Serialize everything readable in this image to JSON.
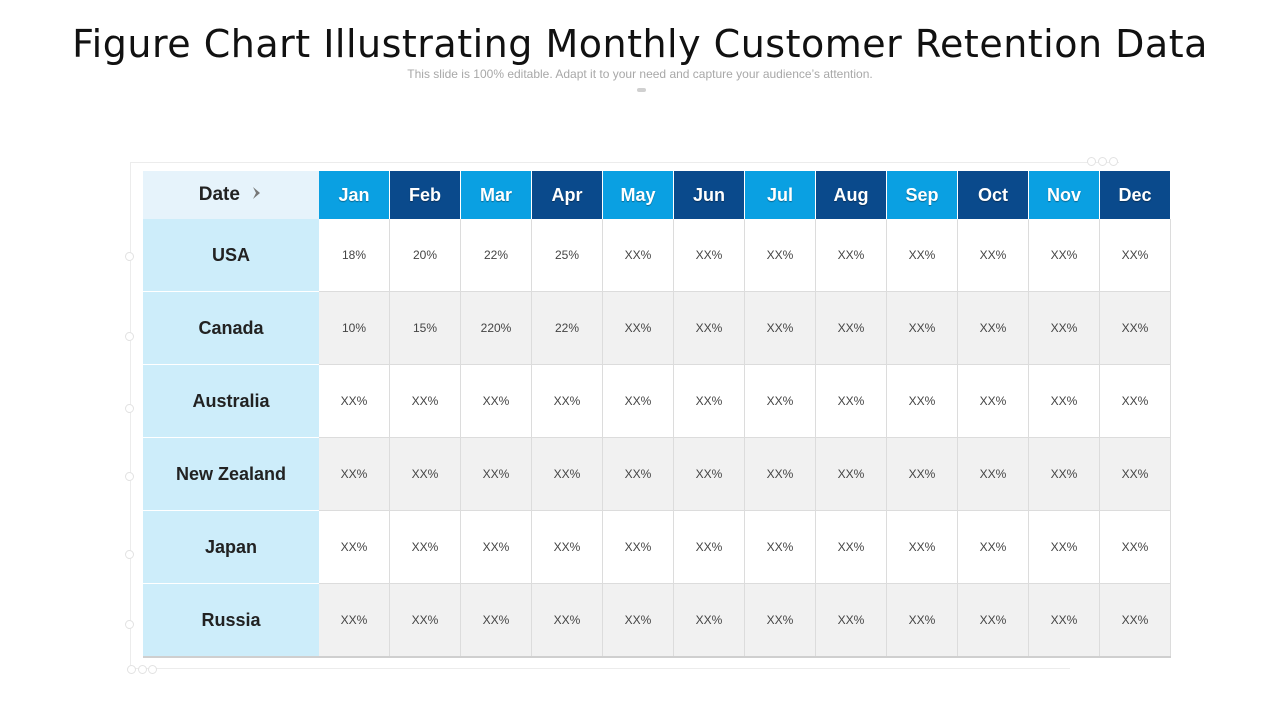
{
  "header": {
    "title": "Figure Chart Illustrating Monthly Customer Retention Data",
    "subtitle": "This slide is 100% editable. Adapt it to your need and capture your audience’s attention."
  },
  "table": {
    "corner_label": "Date",
    "corner_icon": "chevron-right-icon",
    "colors": {
      "month_light": "#0aa0e2",
      "month_dark": "#0a4a8c",
      "row_label_bg": "#cdedfa",
      "corner_bg": "#e6f3fb"
    }
  },
  "chart_data": {
    "type": "table",
    "columns": [
      "Jan",
      "Feb",
      "Mar",
      "Apr",
      "May",
      "Jun",
      "Jul",
      "Aug",
      "Sep",
      "Oct",
      "Nov",
      "Dec"
    ],
    "column_shades": [
      "light",
      "dark",
      "light",
      "dark",
      "light",
      "dark",
      "light",
      "dark",
      "light",
      "dark",
      "light",
      "dark"
    ],
    "rows": [
      {
        "label": "USA",
        "values": [
          "18%",
          "20%",
          "22%",
          "25%",
          "XX%",
          "XX%",
          "XX%",
          "XX%",
          "XX%",
          "XX%",
          "XX%",
          "XX%"
        ]
      },
      {
        "label": "Canada",
        "values": [
          "10%",
          "15%",
          "220%",
          "22%",
          "XX%",
          "XX%",
          "XX%",
          "XX%",
          "XX%",
          "XX%",
          "XX%",
          "XX%"
        ]
      },
      {
        "label": "Australia",
        "values": [
          "XX%",
          "XX%",
          "XX%",
          "XX%",
          "XX%",
          "XX%",
          "XX%",
          "XX%",
          "XX%",
          "XX%",
          "XX%",
          "XX%"
        ]
      },
      {
        "label": "New Zealand",
        "values": [
          "XX%",
          "XX%",
          "XX%",
          "XX%",
          "XX%",
          "XX%",
          "XX%",
          "XX%",
          "XX%",
          "XX%",
          "XX%",
          "XX%"
        ]
      },
      {
        "label": "Japan",
        "values": [
          "XX%",
          "XX%",
          "XX%",
          "XX%",
          "XX%",
          "XX%",
          "XX%",
          "XX%",
          "XX%",
          "XX%",
          "XX%",
          "XX%"
        ]
      },
      {
        "label": "Russia",
        "values": [
          "XX%",
          "XX%",
          "XX%",
          "XX%",
          "XX%",
          "XX%",
          "XX%",
          "XX%",
          "XX%",
          "XX%",
          "XX%",
          "XX%"
        ]
      }
    ]
  }
}
